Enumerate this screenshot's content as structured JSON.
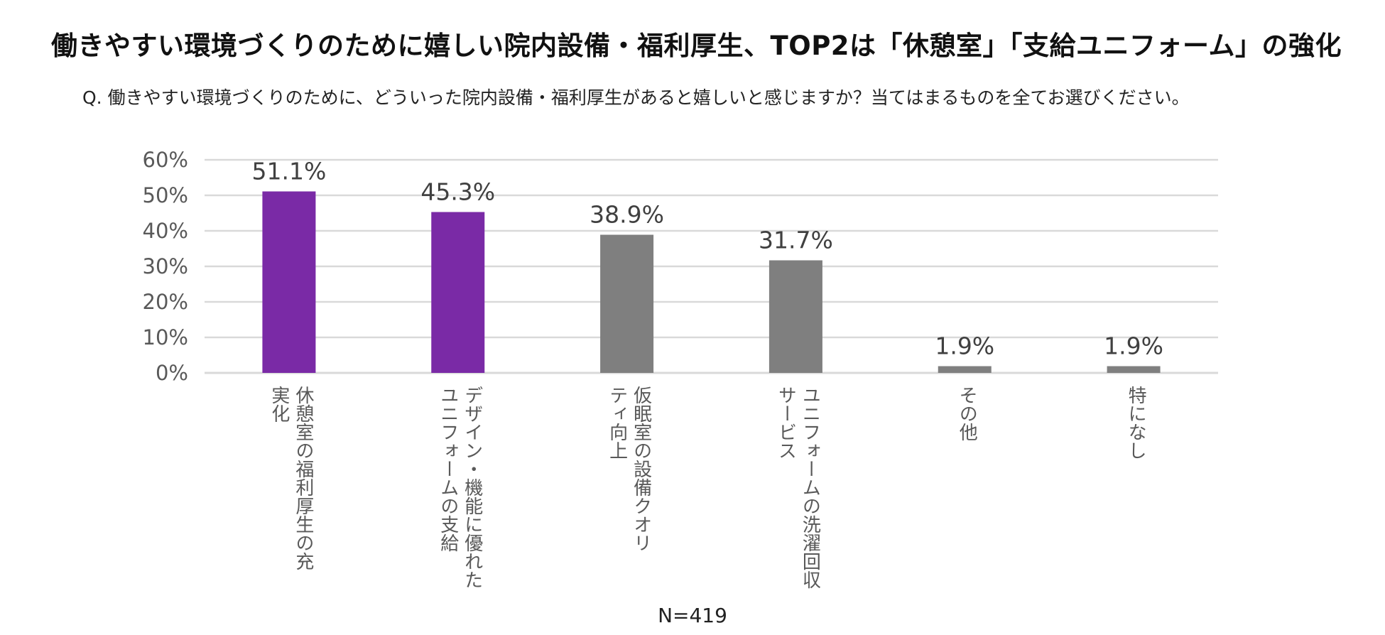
{
  "title": "働きやすい環境づくりのために嬉しい院内設備・福利厚生、TOP2は「休憩室」「支給ユニフォーム」の強化",
  "question": "Q. 働きやすい環境づくりのために、どういった院内設備・福利厚生があると嬉しいと感じますか？当てはまるものを全てお選びください。",
  "n_label": "N=419",
  "colors": {
    "highlight": "#7a2aa6",
    "default": "#7f7f7f",
    "grid": "#d9d9d9"
  },
  "chart_data": {
    "type": "bar",
    "title": "働きやすい環境づくりのために嬉しい院内設備・福利厚生、TOP2は「休憩室」「支給ユニフォーム」の強化",
    "ylim": [
      0,
      60
    ],
    "yticks": [
      0,
      10,
      20,
      30,
      40,
      50,
      60
    ],
    "ytick_labels": [
      "0%",
      "10%",
      "20%",
      "30%",
      "40%",
      "50%",
      "60%"
    ],
    "categories": [
      [
        "休憩室の福利厚生の充",
        "実化"
      ],
      [
        "デザイン・機能に優れた",
        "ユニフォームの支給"
      ],
      [
        "仮眠室の設備クオリ",
        "ティ向上"
      ],
      [
        "ユニフォームの洗濯回収",
        "サービス"
      ],
      [
        "その他"
      ],
      [
        "特になし"
      ]
    ],
    "values": [
      51.1,
      45.3,
      38.9,
      31.7,
      1.9,
      1.9
    ],
    "value_labels": [
      "51.1%",
      "45.3%",
      "38.9%",
      "31.7%",
      "1.9%",
      "1.9%"
    ],
    "highlighted": [
      true,
      true,
      false,
      false,
      false,
      false
    ]
  }
}
